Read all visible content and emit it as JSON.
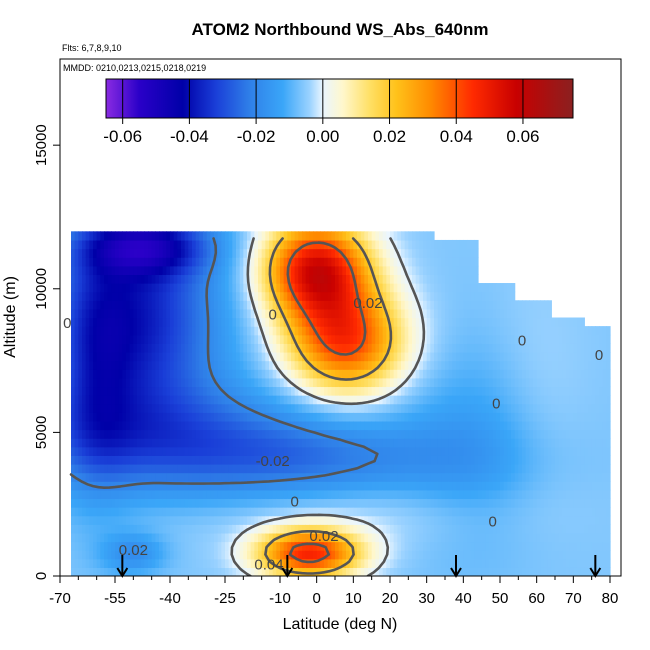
{
  "chart_data": {
    "type": "heatmap",
    "title": "ATOM2 Northbound WS_Abs_640nm",
    "note_flights": "Flts: 6,7,8,9,10",
    "note_dates": "MMDD: 0210,0213,0215,0218,0219",
    "xlabel": "Latitude (deg N)",
    "ylabel": "Altitude (m)",
    "xlim": [
      -70,
      83
    ],
    "ylim": [
      0,
      18000
    ],
    "xticks_major": [
      -70,
      -55,
      -40,
      -25,
      -10,
      0,
      10,
      20,
      30,
      40,
      50,
      60,
      70,
      80
    ],
    "xtick_labels": [
      "-70",
      "-55",
      "-40",
      "-25",
      "-10",
      "0",
      "10",
      "20",
      "30",
      "40",
      "50",
      "60",
      "70",
      "80"
    ],
    "xticks_minor": [
      -65,
      -60,
      -50,
      -45,
      -35,
      -30,
      -20,
      -15,
      -5,
      5,
      15,
      25,
      35,
      45,
      55,
      65,
      75
    ],
    "yticks": [
      0,
      5000,
      10000,
      15000
    ],
    "ytick_labels": [
      "0",
      "5000",
      "10000",
      "15000"
    ],
    "colorbar": {
      "min": -0.065,
      "max": 0.075,
      "ticks": [
        -0.06,
        -0.04,
        -0.02,
        0.0,
        0.02,
        0.04,
        0.06
      ],
      "tick_labels": [
        "-0.06",
        "-0.04",
        "-0.02",
        "0.00",
        "0.02",
        "0.04",
        "0.06"
      ]
    },
    "color_stops": [
      {
        "v": -0.065,
        "c": "#8a2be2"
      },
      {
        "v": -0.055,
        "c": "#2a00c8"
      },
      {
        "v": -0.042,
        "c": "#0000a8"
      },
      {
        "v": -0.032,
        "c": "#1a3fd8"
      },
      {
        "v": -0.022,
        "c": "#2f7fe8"
      },
      {
        "v": -0.012,
        "c": "#3aa6f8"
      },
      {
        "v": -0.004,
        "c": "#9ad2ff"
      },
      {
        "v": 0.0,
        "c": "#eaf6ff"
      },
      {
        "v": 0.006,
        "c": "#fff7cc"
      },
      {
        "v": 0.014,
        "c": "#ffe066"
      },
      {
        "v": 0.022,
        "c": "#ffc21a"
      },
      {
        "v": 0.032,
        "c": "#ff8c00"
      },
      {
        "v": 0.045,
        "c": "#ff2a00"
      },
      {
        "v": 0.058,
        "c": "#c80000"
      },
      {
        "v": 0.075,
        "c": "#8b2020"
      }
    ],
    "coverage": [
      {
        "lat_min": -67,
        "lat_max": 32,
        "alt_max": 11800
      },
      {
        "lat_min": 32,
        "lat_max": 44,
        "alt_max": 11600
      },
      {
        "lat_min": 44,
        "lat_max": 54,
        "alt_max": 10000
      },
      {
        "lat_min": 54,
        "lat_max": 64,
        "alt_max": 9400
      },
      {
        "lat_min": 64,
        "lat_max": 73,
        "alt_max": 9000
      },
      {
        "lat_min": 73,
        "lat_max": 80,
        "alt_max": 8600
      }
    ],
    "field": {
      "background": -0.006,
      "features": [
        {
          "lat": -50,
          "alt": 9000,
          "slat": 16,
          "salt": 2600,
          "value": -0.032
        },
        {
          "lat": -47,
          "alt": 11500,
          "slat": 12,
          "salt": 700,
          "value": -0.028
        },
        {
          "lat": -60,
          "alt": 7000,
          "slat": 7,
          "salt": 3000,
          "value": -0.012
        },
        {
          "lat": -46,
          "alt": 5000,
          "slat": 30,
          "salt": 1300,
          "value": -0.016
        },
        {
          "lat": -5,
          "alt": 4000,
          "slat": 30,
          "salt": 1100,
          "value": -0.016
        },
        {
          "lat": 45,
          "alt": 4500,
          "slat": 15,
          "salt": 2600,
          "value": -0.008
        },
        {
          "lat": 60,
          "alt": 6000,
          "slat": 10,
          "salt": 3000,
          "value": 0.004
        },
        {
          "lat": 8,
          "alt": 8200,
          "slat": 11,
          "salt": 1300,
          "value": 0.048
        },
        {
          "lat": 0,
          "alt": 10700,
          "slat": 10,
          "salt": 1200,
          "value": 0.06
        },
        {
          "lat": -2,
          "alt": 800,
          "slat": 10,
          "salt": 600,
          "value": 0.052
        },
        {
          "lat": -50,
          "alt": 800,
          "slat": 6,
          "salt": 500,
          "value": -0.012
        },
        {
          "lat": 10,
          "alt": 2300,
          "slat": 30,
          "salt": 900,
          "value": 0.006
        }
      ]
    },
    "contour_labels": [
      {
        "text": "0.02",
        "lat": 14,
        "alt": 9500
      },
      {
        "text": "0",
        "lat": -12,
        "alt": 9100
      },
      {
        "text": "0",
        "lat": -68,
        "alt": 8800
      },
      {
        "text": "0",
        "lat": 56,
        "alt": 8200
      },
      {
        "text": "0",
        "lat": 77,
        "alt": 7700
      },
      {
        "text": "0",
        "lat": 49,
        "alt": 6000
      },
      {
        "text": "-0.02",
        "lat": -12,
        "alt": 4000
      },
      {
        "text": "0",
        "lat": -6,
        "alt": 2600
      },
      {
        "text": "0.02",
        "lat": 2,
        "alt": 1400
      },
      {
        "text": "0",
        "lat": 48,
        "alt": 1900
      },
      {
        "text": "0.04",
        "lat": -13,
        "alt": 400
      },
      {
        "text": "0.02",
        "lat": -50,
        "alt": 900
      }
    ],
    "flight_arrows_lat": [
      -53,
      -8,
      38,
      76
    ]
  }
}
